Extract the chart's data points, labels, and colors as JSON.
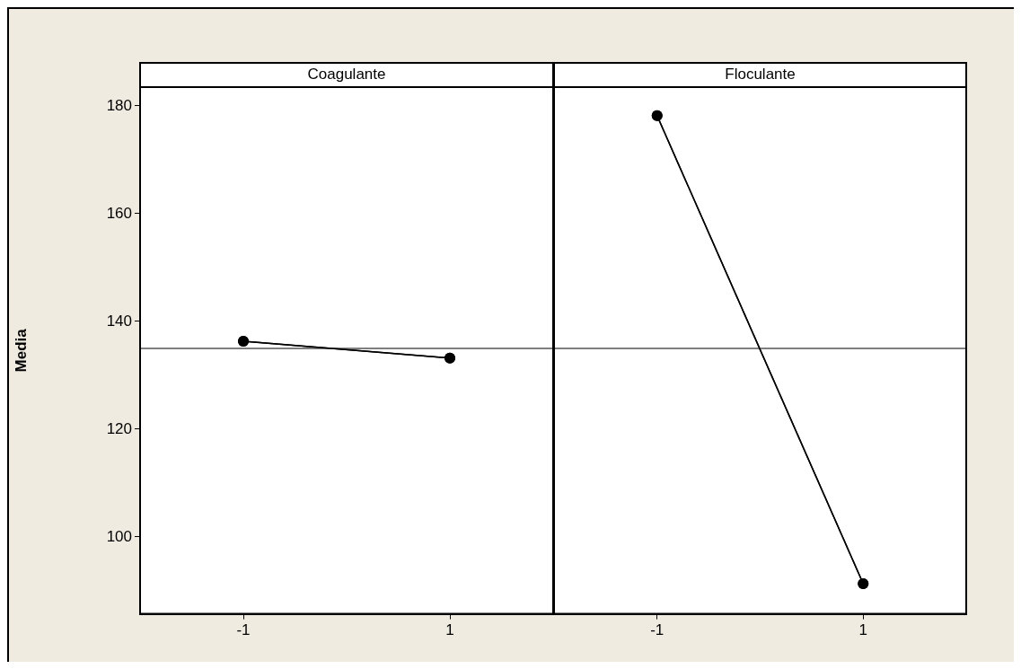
{
  "chart_data": [
    {
      "type": "line",
      "title": "Coagulante",
      "ylabel": "Media",
      "categories": [
        "-1",
        "1"
      ],
      "series": [
        {
          "color": "#000000",
          "values": [
            136.3,
            133.2
          ]
        }
      ],
      "ylim": [
        85.7,
        183.5
      ],
      "yticks": [
        100,
        120,
        140,
        160,
        180
      ],
      "ref_lines": [
        {
          "axis": "y",
          "value": 135,
          "color": "#555555"
        }
      ],
      "marker": "circle",
      "grid": false,
      "legend": false
    },
    {
      "type": "line",
      "title": "Floculante",
      "categories": [
        "-1",
        "1"
      ],
      "series": [
        {
          "color": "#000000",
          "values": [
            178.2,
            91.3
          ]
        }
      ],
      "ylim": [
        85.7,
        183.5
      ],
      "yticks": [
        100,
        120,
        140,
        160,
        180
      ],
      "ref_lines": [
        {
          "axis": "y",
          "value": 135,
          "color": "#555555"
        }
      ],
      "marker": "circle",
      "grid": false,
      "legend": false,
      "tick_labels": "x"
    }
  ]
}
